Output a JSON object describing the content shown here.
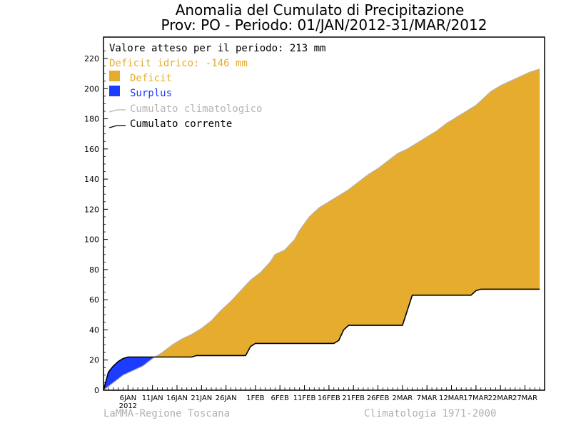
{
  "chart_data": {
    "type": "area",
    "title": "Anomalia del Cumulato di Precipitazione",
    "subtitle": "Prov: PO - Periodo: 01/JAN/2012-31/MAR/2012",
    "xlabel": "",
    "ylabel": "",
    "ylim": [
      0,
      230
    ],
    "xlim": [
      0,
      90
    ],
    "y_ticks": [
      0,
      20,
      40,
      60,
      80,
      100,
      120,
      140,
      160,
      180,
      200,
      220
    ],
    "x_tick_labels": [
      {
        "day": 5,
        "label": "6JAN"
      },
      {
        "day": 10,
        "label": "11JAN"
      },
      {
        "day": 15,
        "label": "16JAN"
      },
      {
        "day": 20,
        "label": "21JAN"
      },
      {
        "day": 25,
        "label": "26JAN"
      },
      {
        "day": 31,
        "label": "1FEB"
      },
      {
        "day": 36,
        "label": "6FEB"
      },
      {
        "day": 41,
        "label": "11FEB"
      },
      {
        "day": 46,
        "label": "16FEB"
      },
      {
        "day": 51,
        "label": "21FEB"
      },
      {
        "day": 56,
        "label": "26FEB"
      },
      {
        "day": 61,
        "label": "2MAR"
      },
      {
        "day": 66,
        "label": "7MAR"
      },
      {
        "day": 71,
        "label": "12MAR"
      },
      {
        "day": 76,
        "label": "17MAR"
      },
      {
        "day": 81,
        "label": "22MAR"
      },
      {
        "day": 86,
        "label": "27MAR"
      }
    ],
    "year_label": "2012",
    "info_lines": {
      "expected": "Valore atteso per il periodo: 213 mm",
      "deficit": "Deficit idrico: -146 mm"
    },
    "legend": {
      "placement": "top-left",
      "deficit": "Deficit",
      "surplus": "Surplus",
      "climatological": "Cumulato climatologico",
      "current": "Cumulato corrente"
    },
    "colors": {
      "deficit": "#E5AC2E",
      "surplus": "#1C3CFF",
      "climatological": "#B4B4B4",
      "current": "#000000",
      "deficit_text": "#E5AC2E",
      "surplus_text": "#1C3CFF",
      "climatological_text": "#B4B4B4"
    },
    "series": [
      {
        "name": "Cumulato climatologico",
        "points": [
          [
            0,
            0
          ],
          [
            2,
            5
          ],
          [
            4,
            10
          ],
          [
            6,
            13
          ],
          [
            8,
            16
          ],
          [
            10,
            21
          ],
          [
            12,
            25
          ],
          [
            14,
            30
          ],
          [
            16,
            34
          ],
          [
            18,
            37
          ],
          [
            20,
            41
          ],
          [
            22,
            46
          ],
          [
            24,
            53
          ],
          [
            26,
            59
          ],
          [
            28,
            66
          ],
          [
            30,
            73
          ],
          [
            32,
            78
          ],
          [
            34,
            85
          ],
          [
            35,
            90
          ],
          [
            37,
            93
          ],
          [
            39,
            100
          ],
          [
            40,
            106
          ],
          [
            42,
            115
          ],
          [
            44,
            121
          ],
          [
            46,
            125
          ],
          [
            48,
            129
          ],
          [
            50,
            133
          ],
          [
            52,
            138
          ],
          [
            54,
            143
          ],
          [
            56,
            147
          ],
          [
            58,
            152
          ],
          [
            60,
            157
          ],
          [
            62,
            160
          ],
          [
            64,
            164
          ],
          [
            66,
            168
          ],
          [
            68,
            172
          ],
          [
            70,
            177
          ],
          [
            72,
            181
          ],
          [
            74,
            185
          ],
          [
            76,
            189
          ],
          [
            78,
            195
          ],
          [
            79,
            198
          ],
          [
            81,
            202
          ],
          [
            83,
            205
          ],
          [
            85,
            208
          ],
          [
            87,
            211
          ],
          [
            89,
            213
          ]
        ]
      },
      {
        "name": "Cumulato corrente",
        "points": [
          [
            0,
            0
          ],
          [
            0.5,
            6
          ],
          [
            1,
            12
          ],
          [
            2,
            16
          ],
          [
            3,
            19
          ],
          [
            4,
            21
          ],
          [
            5,
            22
          ],
          [
            18,
            22
          ],
          [
            19,
            23
          ],
          [
            29,
            23
          ],
          [
            30,
            29
          ],
          [
            31,
            31
          ],
          [
            47,
            31
          ],
          [
            48,
            33
          ],
          [
            49,
            40
          ],
          [
            50,
            43
          ],
          [
            61,
            43
          ],
          [
            62,
            53
          ],
          [
            63,
            63
          ],
          [
            75,
            63
          ],
          [
            76,
            66
          ],
          [
            77,
            67
          ],
          [
            89,
            67
          ]
        ]
      }
    ]
  },
  "footer": {
    "left": "LaMMA-Regione Toscana",
    "right": "Climatologia 1971-2000"
  }
}
